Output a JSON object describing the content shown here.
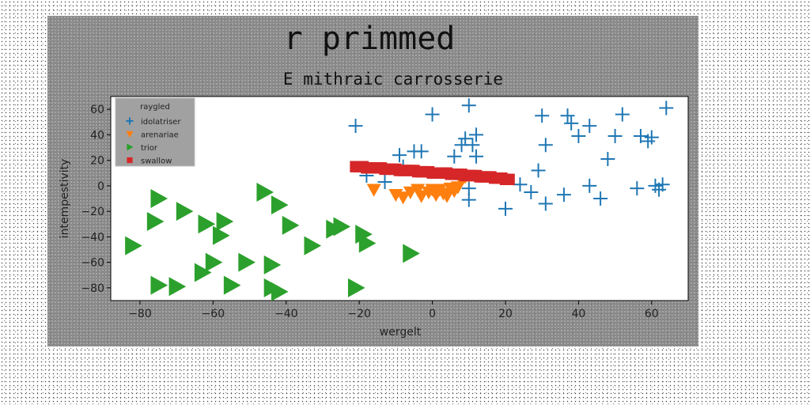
{
  "chart_data": {
    "type": "scatter",
    "title": "r primmed",
    "subtitle": "E mithraic carrosserie",
    "xlabel": "wergelt",
    "ylabel": "intempestivity",
    "xlim": [
      -88,
      70
    ],
    "ylim": [
      -90,
      70
    ],
    "xticks": [
      -80,
      -60,
      -40,
      -20,
      0,
      20,
      40,
      60
    ],
    "yticks": [
      -80,
      -60,
      -40,
      -20,
      0,
      20,
      40,
      60
    ],
    "grid": false,
    "legend": {
      "title": "raygled",
      "placement": "top-left"
    },
    "series": [
      {
        "name": "idolatriser",
        "marker": "plus",
        "color": "#1f77b4",
        "points": [
          [
            -21,
            47
          ],
          [
            -18,
            8
          ],
          [
            -13,
            3
          ],
          [
            -9,
            24
          ],
          [
            -8,
            15
          ],
          [
            -5,
            27
          ],
          [
            -3,
            27
          ],
          [
            0,
            56
          ],
          [
            6,
            23
          ],
          [
            8,
            32
          ],
          [
            9,
            37
          ],
          [
            10,
            63
          ],
          [
            11,
            32
          ],
          [
            12,
            40
          ],
          [
            12,
            23
          ],
          [
            10,
            -2
          ],
          [
            10,
            -11
          ],
          [
            20,
            -18
          ],
          [
            24,
            1
          ],
          [
            27,
            -5
          ],
          [
            29,
            12
          ],
          [
            30,
            55
          ],
          [
            31,
            32
          ],
          [
            31,
            -14
          ],
          [
            36,
            -7
          ],
          [
            37,
            55
          ],
          [
            38,
            49
          ],
          [
            40,
            39
          ],
          [
            43,
            47
          ],
          [
            43,
            0
          ],
          [
            46,
            -10
          ],
          [
            48,
            21
          ],
          [
            50,
            39
          ],
          [
            52,
            56
          ],
          [
            56,
            -2
          ],
          [
            57,
            39
          ],
          [
            59,
            35
          ],
          [
            60,
            38
          ],
          [
            61,
            0
          ],
          [
            62,
            -3
          ],
          [
            63,
            1
          ],
          [
            64,
            61
          ]
        ]
      },
      {
        "name": "arenariae",
        "marker": "triangle-down",
        "color": "#ff7f0e",
        "points": [
          [
            -16,
            -3
          ],
          [
            -10,
            -7
          ],
          [
            -8,
            -9
          ],
          [
            -6,
            -5
          ],
          [
            -4,
            -3
          ],
          [
            -3,
            -8
          ],
          [
            -1,
            -5
          ],
          [
            0,
            -3
          ],
          [
            1,
            -7
          ],
          [
            2,
            -3
          ],
          [
            3,
            -6
          ],
          [
            4,
            -8
          ],
          [
            5,
            -2
          ],
          [
            6,
            -4
          ],
          [
            7,
            -1
          ],
          [
            8,
            4
          ],
          [
            9,
            7
          ],
          [
            10,
            8
          ]
        ]
      },
      {
        "name": "trior",
        "marker": "triangle-right",
        "color": "#2ca02c",
        "points": [
          [
            -75,
            -10
          ],
          [
            -76,
            -28
          ],
          [
            -82,
            -47
          ],
          [
            -68,
            -20
          ],
          [
            -62,
            -30
          ],
          [
            -57,
            -28
          ],
          [
            -58,
            -39
          ],
          [
            -60,
            -60
          ],
          [
            -63,
            -68
          ],
          [
            -55,
            -78
          ],
          [
            -51,
            -60
          ],
          [
            -75,
            -78
          ],
          [
            -70,
            -79
          ],
          [
            -46,
            -5
          ],
          [
            -42,
            -15
          ],
          [
            -39,
            -31
          ],
          [
            -33,
            -47
          ],
          [
            -44,
            -62
          ],
          [
            -44,
            -80
          ],
          [
            -42,
            -83
          ],
          [
            -27,
            -34
          ],
          [
            -25,
            -32
          ],
          [
            -19,
            -38
          ],
          [
            -18,
            -45
          ],
          [
            -21,
            -80
          ],
          [
            -6,
            -53
          ]
        ]
      },
      {
        "name": "swallow",
        "marker": "square",
        "color": "#d62728",
        "points": [
          [
            -21,
            15
          ],
          [
            -20,
            15
          ],
          [
            -19,
            15
          ],
          [
            -18,
            14
          ],
          [
            -17,
            14
          ],
          [
            -16,
            14
          ],
          [
            -15,
            14
          ],
          [
            -14,
            14
          ],
          [
            -13,
            13
          ],
          [
            -12,
            13
          ],
          [
            -11,
            13
          ],
          [
            -10,
            13
          ],
          [
            -9,
            12
          ],
          [
            -8,
            12
          ],
          [
            -7,
            12
          ],
          [
            -6,
            12
          ],
          [
            -5,
            12
          ],
          [
            -4,
            11
          ],
          [
            -3,
            11
          ],
          [
            -2,
            11
          ],
          [
            -1,
            11
          ],
          [
            0,
            10
          ],
          [
            1,
            10
          ],
          [
            2,
            10
          ],
          [
            3,
            10
          ],
          [
            4,
            10
          ],
          [
            5,
            9
          ],
          [
            6,
            9
          ],
          [
            7,
            9
          ],
          [
            8,
            9
          ],
          [
            9,
            8
          ],
          [
            10,
            8
          ],
          [
            11,
            8
          ],
          [
            12,
            8
          ],
          [
            13,
            7
          ],
          [
            14,
            7
          ],
          [
            15,
            7
          ],
          [
            16,
            7
          ],
          [
            17,
            6
          ],
          [
            18,
            6
          ],
          [
            19,
            6
          ],
          [
            20,
            5
          ],
          [
            21,
            5
          ]
        ]
      }
    ]
  }
}
